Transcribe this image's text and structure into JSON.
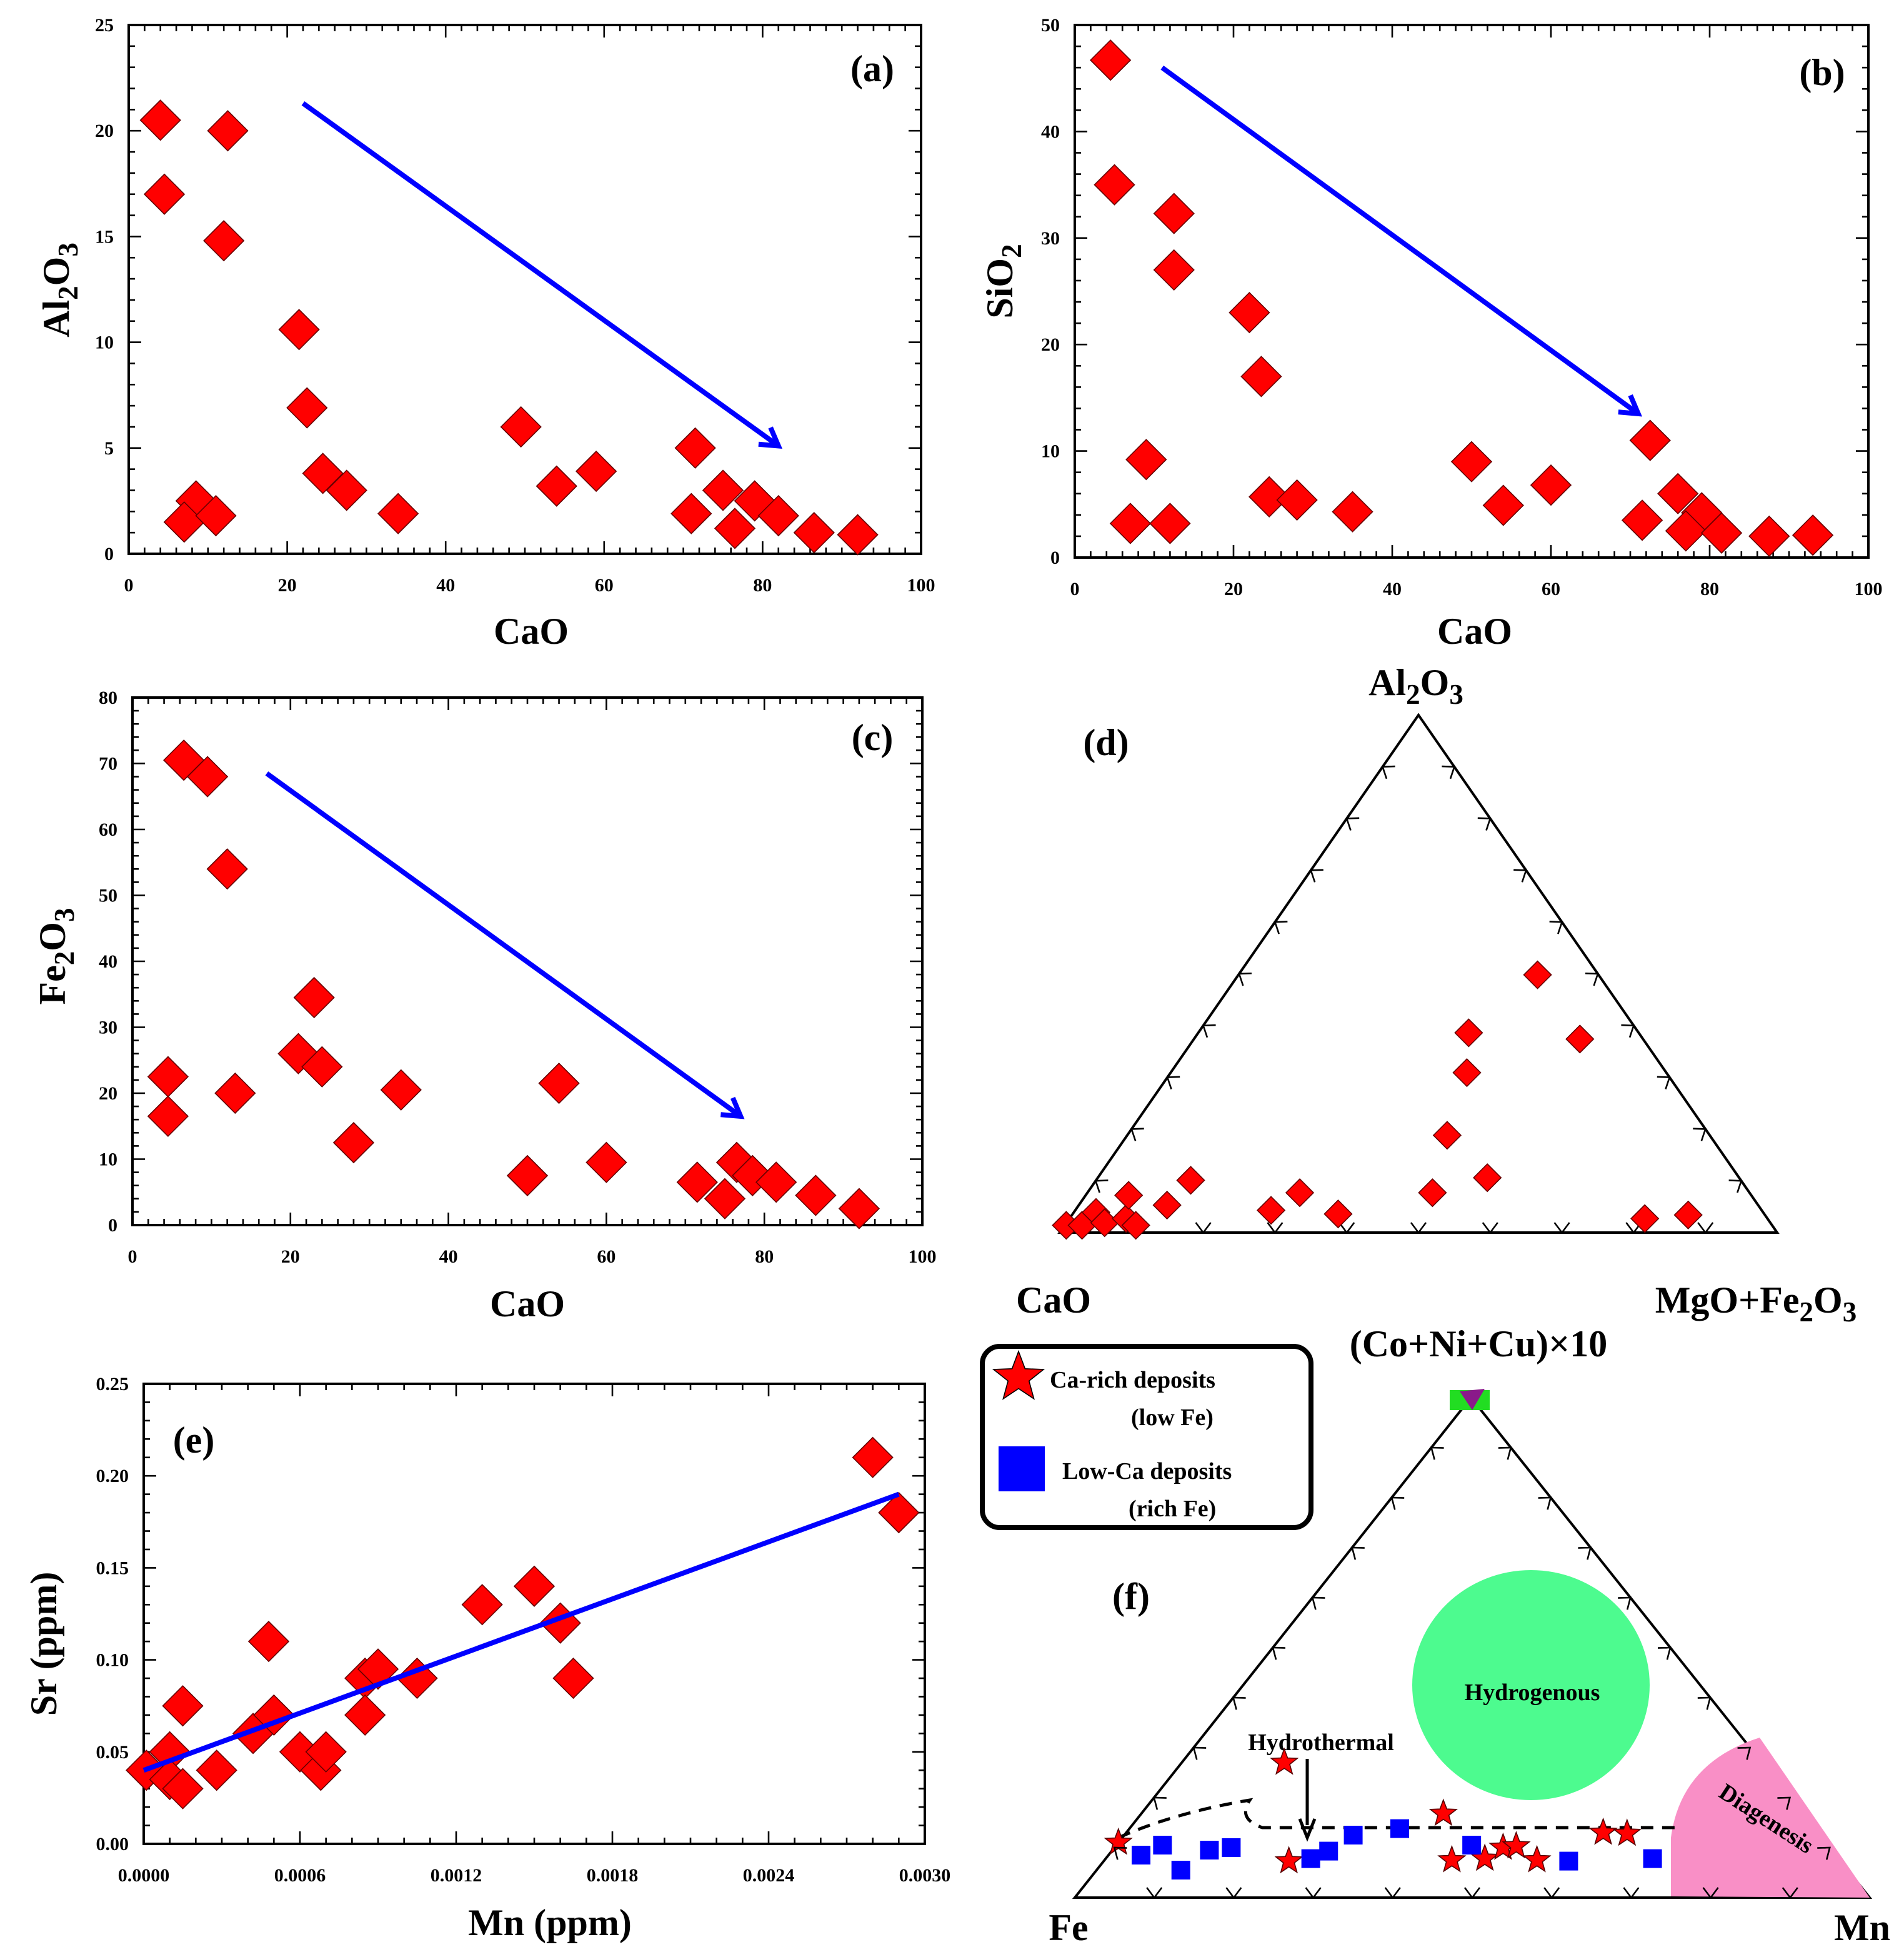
{
  "chart_data": [
    {
      "type": "scatter",
      "panel_label": "(a)",
      "xlabel": "CaO",
      "ylabel": "Al2O3",
      "xlim": [
        0,
        100
      ],
      "ylim": [
        0,
        25
      ],
      "xticks": [
        0,
        20,
        40,
        60,
        80,
        100
      ],
      "yticks": [
        0,
        5,
        10,
        15,
        20,
        25
      ],
      "xtick_labels": [
        "0",
        "20",
        "40",
        "60",
        "80",
        "100"
      ],
      "ytick_labels": [
        "0",
        "5",
        "10",
        "15",
        "20",
        "25"
      ],
      "marker": "diamond",
      "marker_color": "#ff0000",
      "points": [
        [
          4,
          20.5
        ],
        [
          12.5,
          20
        ],
        [
          4.5,
          17
        ],
        [
          12,
          14.8
        ],
        [
          21.5,
          10.6
        ],
        [
          22.5,
          6.9
        ],
        [
          24.5,
          3.8
        ],
        [
          27.5,
          3
        ],
        [
          34,
          1.9
        ],
        [
          8.5,
          2.5
        ],
        [
          7,
          1.5
        ],
        [
          11,
          1.8
        ],
        [
          49.5,
          6
        ],
        [
          54,
          3.2
        ],
        [
          59,
          3.9
        ],
        [
          71.5,
          5
        ],
        [
          71,
          1.9
        ],
        [
          75,
          3
        ],
        [
          76.5,
          1.2
        ],
        [
          79,
          2.5
        ],
        [
          82,
          1.8
        ],
        [
          86.5,
          1
        ],
        [
          92,
          0.9
        ]
      ],
      "trend_arrow": {
        "from": [
          22,
          21.3
        ],
        "to": [
          82,
          5.1
        ],
        "color": "#0000ff"
      }
    },
    {
      "type": "scatter",
      "panel_label": "(b)",
      "xlabel": "CaO",
      "ylabel": "SiO2",
      "xlim": [
        0,
        100
      ],
      "ylim": [
        0,
        50
      ],
      "xticks": [
        0,
        20,
        40,
        60,
        80,
        100
      ],
      "yticks": [
        0,
        10,
        20,
        30,
        40,
        50
      ],
      "xtick_labels": [
        "0",
        "20",
        "40",
        "60",
        "80",
        "100"
      ],
      "ytick_labels": [
        "0",
        "10",
        "20",
        "30",
        "40",
        "50"
      ],
      "marker": "diamond",
      "marker_color": "#ff0000",
      "points": [
        [
          4.5,
          46.7
        ],
        [
          5,
          35
        ],
        [
          12.5,
          32.3
        ],
        [
          12.5,
          27
        ],
        [
          22,
          23
        ],
        [
          23.5,
          17
        ],
        [
          9,
          9.2
        ],
        [
          7,
          3.2
        ],
        [
          12,
          3.2
        ],
        [
          24.5,
          5.7
        ],
        [
          28,
          5.4
        ],
        [
          35,
          4.3
        ],
        [
          50,
          9
        ],
        [
          54,
          4.9
        ],
        [
          60,
          6.8
        ],
        [
          72.5,
          11
        ],
        [
          71.5,
          3.5
        ],
        [
          76,
          6
        ],
        [
          79,
          4.2
        ],
        [
          77,
          2.5
        ],
        [
          81.5,
          2.3
        ],
        [
          87.5,
          2
        ],
        [
          93,
          2.1
        ]
      ],
      "trend_arrow": {
        "from": [
          11,
          46
        ],
        "to": [
          71,
          13.5
        ],
        "color": "#0000ff"
      }
    },
    {
      "type": "scatter",
      "panel_label": "(c)",
      "xlabel": "CaO",
      "ylabel": "Fe2O3",
      "xlim": [
        0,
        100
      ],
      "ylim": [
        0,
        80
      ],
      "xticks": [
        0,
        20,
        40,
        60,
        80,
        100
      ],
      "yticks": [
        0,
        10,
        20,
        30,
        40,
        50,
        60,
        70,
        80
      ],
      "xtick_labels": [
        "0",
        "20",
        "40",
        "60",
        "80",
        "100"
      ],
      "ytick_labels": [
        "0",
        "10",
        "20",
        "30",
        "40",
        "50",
        "60",
        "70",
        "80"
      ],
      "marker": "diamond",
      "marker_color": "#ff0000",
      "points": [
        [
          6.5,
          70.5
        ],
        [
          9.5,
          68
        ],
        [
          12,
          54
        ],
        [
          4.5,
          22.5
        ],
        [
          4.5,
          16.5
        ],
        [
          13,
          20
        ],
        [
          21,
          26
        ],
        [
          23,
          34.5
        ],
        [
          24,
          24
        ],
        [
          28,
          12.5
        ],
        [
          34,
          20.5
        ],
        [
          50,
          7.5
        ],
        [
          54,
          21.5
        ],
        [
          60,
          9.5
        ],
        [
          71.5,
          6.5
        ],
        [
          75,
          4
        ],
        [
          76.5,
          9.5
        ],
        [
          78.5,
          7.5
        ],
        [
          81.5,
          6.5
        ],
        [
          86.5,
          4.5
        ],
        [
          92,
          2.5
        ]
      ],
      "trend_arrow": {
        "from": [
          17,
          68.5
        ],
        "to": [
          77,
          16.5
        ],
        "color": "#0000ff"
      }
    },
    {
      "type": "ternary",
      "panel_label": "(d)",
      "apex_labels": {
        "top": "Al2O3",
        "left": "CaO",
        "right": "MgO+Fe2O3"
      },
      "marker": "diamond",
      "marker_color": "#ff0000",
      "points_percent_top_right": [
        [
          1.4,
          0.2
        ],
        [
          1.4,
          2.4
        ],
        [
          3.9,
          3.1
        ],
        [
          1.9,
          5.3
        ],
        [
          2.7,
          7.9
        ],
        [
          7.2,
          6.0
        ],
        [
          1.4,
          9.9
        ],
        [
          5.3,
          12.3
        ],
        [
          10.1,
          13.2
        ],
        [
          4.3,
          27.3
        ],
        [
          7.7,
          29.6
        ],
        [
          3.6,
          37.0
        ],
        [
          7.7,
          48.1
        ],
        [
          18.8,
          44.6
        ],
        [
          30.9,
          41.3
        ],
        [
          38.6,
          37.7
        ],
        [
          10.6,
          54.3
        ],
        [
          49.8,
          41.7
        ],
        [
          37.4,
          53.8
        ],
        [
          2.7,
          80.2
        ],
        [
          3.4,
          85.9
        ]
      ]
    },
    {
      "type": "scatter",
      "panel_label": "(e)",
      "xlabel": "Mn (ppm)",
      "ylabel": "Sr (ppm)",
      "xlim": [
        0,
        0.003
      ],
      "ylim": [
        0,
        0.25
      ],
      "xticks": [
        0,
        0.0006,
        0.0012,
        0.0018,
        0.0024,
        0.003
      ],
      "yticks": [
        0,
        0.05,
        0.1,
        0.15,
        0.2,
        0.25
      ],
      "xtick_labels": [
        "0.0000",
        "0.0006",
        "0.0012",
        "0.0018",
        "0.0024",
        "0.0030"
      ],
      "ytick_labels": [
        "0.00",
        "0.05",
        "0.10",
        "0.15",
        "0.20",
        "0.25"
      ],
      "marker": "diamond",
      "marker_color": "#ff0000",
      "points": [
        [
          1e-05,
          0.04
        ],
        [
          0.0001,
          0.05
        ],
        [
          0.00015,
          0.075
        ],
        [
          0.0001,
          0.035
        ],
        [
          0.00015,
          0.03
        ],
        [
          0.00028,
          0.04
        ],
        [
          0.00042,
          0.06
        ],
        [
          0.0005,
          0.07
        ],
        [
          0.00048,
          0.11
        ],
        [
          0.0006,
          0.05
        ],
        [
          0.00068,
          0.04
        ],
        [
          0.0007,
          0.05
        ],
        [
          0.00085,
          0.09
        ],
        [
          0.00085,
          0.07
        ],
        [
          0.0009,
          0.095
        ],
        [
          0.00105,
          0.09
        ],
        [
          0.0013,
          0.13
        ],
        [
          0.0015,
          0.14
        ],
        [
          0.0016,
          0.12
        ],
        [
          0.00165,
          0.09
        ],
        [
          0.0028,
          0.21
        ],
        [
          0.0029,
          0.18
        ]
      ],
      "regression_line": {
        "from": [
          0,
          0.04
        ],
        "to": [
          0.0029,
          0.19
        ],
        "color": "#0000ff"
      }
    },
    {
      "type": "ternary",
      "panel_label": "(f)",
      "apex_labels": {
        "top": "(Co+Ni+Cu)×10",
        "left": "Fe",
        "right": "Mn"
      },
      "regions": {
        "hydrogenous": "Hydrogenous",
        "diagenesis": "Diagenesis",
        "hydrothermal": "Hydrothermal"
      },
      "region_colors": {
        "hydrogenous": "#4dfb8f",
        "diagenesis": "#f98fc6"
      },
      "legend": [
        {
          "label": "Ca-rich deposits",
          "sublabel": "(low Fe)",
          "marker": "star",
          "color": "#ff0000"
        },
        {
          "label": "Low-Ca deposits",
          "sublabel": "(rich Fe)",
          "marker": "square",
          "color": "#0000ff"
        }
      ],
      "series": [
        {
          "name": "Ca-rich deposits (low Fe)",
          "marker": "star",
          "points_percent_top_right": [
            [
              11,
              0
            ],
            [
              27,
              12.9
            ],
            [
              7.3,
              23.3
            ],
            [
              16.8,
              38.0
            ],
            [
              7.5,
              43.7
            ],
            [
              7.8,
              47.7
            ],
            [
              10,
              48.9
            ],
            [
              10.3,
              50.4
            ],
            [
              7.5,
              54.4
            ],
            [
              13,
              60.0
            ],
            [
              12.8,
              63.1
            ]
          ]
        },
        {
          "name": "Low-Ca deposits (rich Fe)",
          "marker": "square",
          "points_percent_top_right": [
            [
              8.5,
              4.1
            ],
            [
              10.5,
              5.8
            ],
            [
              5.5,
              10.6
            ],
            [
              9.5,
              12.2
            ],
            [
              10,
              14.7
            ],
            [
              7.8,
              25.8
            ],
            [
              9.3,
              27.3
            ],
            [
              12.5,
              28.8
            ],
            [
              13.8,
              34.0
            ],
            [
              10.5,
              44.7
            ],
            [
              7.3,
              58.5
            ],
            [
              7.8,
              68.8
            ]
          ]
        }
      ]
    }
  ]
}
